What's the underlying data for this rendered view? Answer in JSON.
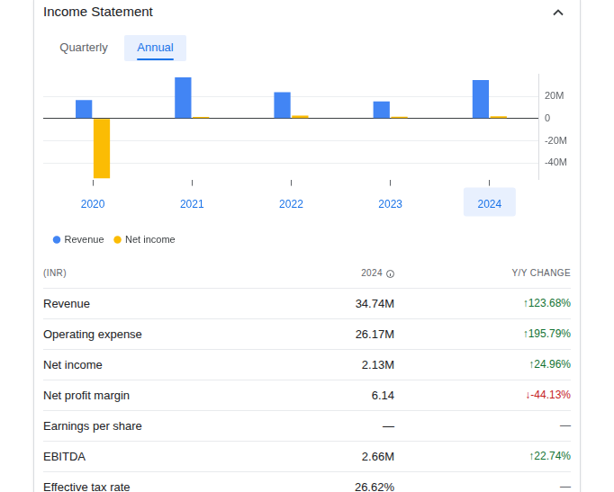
{
  "header": {
    "title": "Income Statement",
    "tabs": [
      "Quarterly",
      "Annual"
    ],
    "selected_tab": "Annual"
  },
  "chart_data": {
    "type": "bar",
    "categories": [
      "2020",
      "2021",
      "2022",
      "2023",
      "2024"
    ],
    "series": [
      {
        "name": "Revenue",
        "color": "#4285f4",
        "values": [
          16.8,
          37.2,
          23.9,
          15.53,
          34.74
        ]
      },
      {
        "name": "Net income",
        "color": "#fbbc04",
        "values": [
          -54,
          1.5,
          2.8,
          1.7,
          2.13
        ]
      }
    ],
    "ylim": [
      -55,
      40
    ],
    "yticks": [
      {
        "value": 20,
        "label": "20M"
      },
      0,
      {
        "value": -20,
        "label": "-20M"
      },
      {
        "value": -40,
        "label": "-40M"
      }
    ],
    "grid": true,
    "legend": "bottom"
  },
  "table": {
    "columns": [
      "(INR)",
      "2024",
      "Y/Y CHANGE"
    ],
    "rows": [
      [
        "Revenue",
        "34.74M",
        "↑123.68%"
      ],
      [
        "Operating expense",
        "26.17M",
        "↑195.79%"
      ],
      [
        "Net income",
        "2.13M",
        "↑24.96%"
      ],
      [
        "Net profit margin",
        "6.14",
        "↓-44.13%"
      ],
      [
        "Earnings per share",
        "—",
        "—"
      ],
      [
        "EBITDA",
        "2.66M",
        "↑22.74%"
      ],
      [
        "Effective tax rate",
        "26.62%",
        "—"
      ]
    ]
  }
}
